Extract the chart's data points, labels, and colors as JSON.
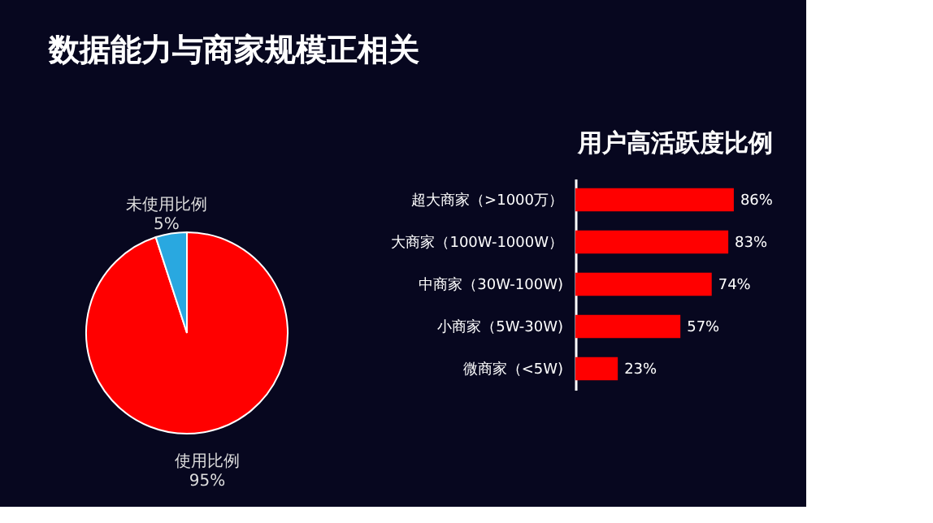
{
  "chart_data": [
    {
      "type": "pie",
      "title": "数据能力与商家规模正相关",
      "categories": [
        "使用比例",
        "未使用比例"
      ],
      "values": [
        95,
        5
      ],
      "colors": [
        "#ff0000",
        "#29a8e0"
      ],
      "value_labels": [
        "95%",
        "5%"
      ],
      "legend": false
    },
    {
      "type": "bar",
      "orientation": "horizontal",
      "title": "用户高活跃度比例",
      "categories": [
        "超大商家（>1000万）",
        "大商家（100W-1000W）",
        "中商家（30W-100W)",
        "小商家（5W-30W)",
        "微商家（<5W)"
      ],
      "values": [
        86,
        83,
        74,
        57,
        23
      ],
      "value_labels": [
        "86%",
        "83%",
        "74%",
        "57%",
        "23%"
      ],
      "color": "#ff0000"
    }
  ]
}
